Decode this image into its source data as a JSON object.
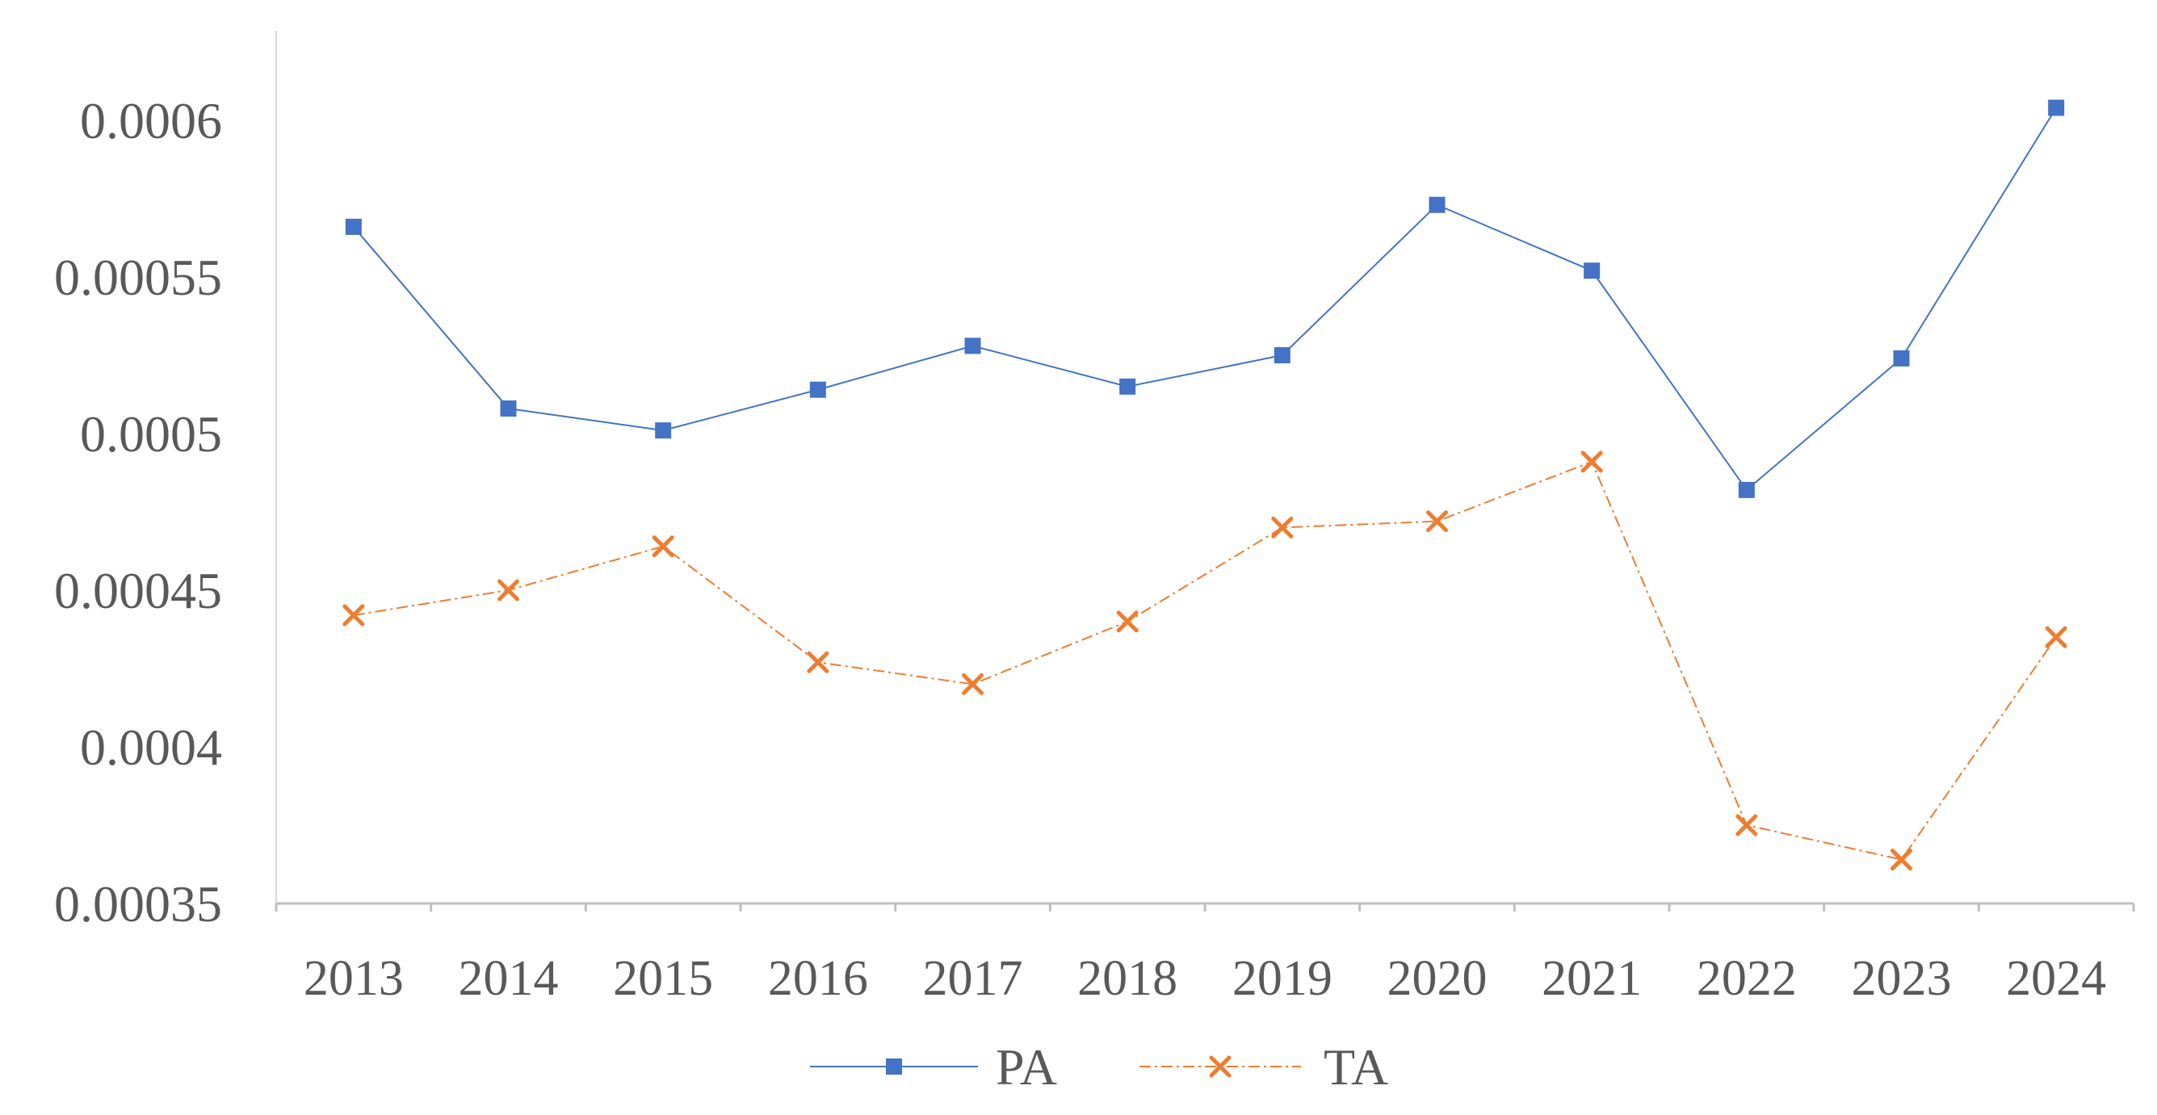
{
  "chart_data": {
    "type": "line",
    "title": "",
    "xlabel": "",
    "ylabel": "",
    "categories": [
      "2013",
      "2014",
      "2015",
      "2016",
      "2017",
      "2018",
      "2019",
      "2020",
      "2021",
      "2022",
      "2023",
      "2024"
    ],
    "ylim": [
      0.00035,
      0.00063
    ],
    "y_ticks": [
      0.00035,
      0.0004,
      0.00045,
      0.0005,
      0.00055,
      0.0006
    ],
    "y_tick_labels": [
      "0.00035",
      "0.0004",
      "0.00045",
      "0.0005",
      "0.00055",
      "0.0006"
    ],
    "grid": false,
    "legend_position": "bottom",
    "series": [
      {
        "name": "PA",
        "color": "#4472C4",
        "marker": "square",
        "line_style": "solid",
        "values": [
          0.000566,
          0.000508,
          0.000501,
          0.000514,
          0.000528,
          0.000515,
          0.000525,
          0.000573,
          0.000552,
          0.000482,
          0.000524,
          0.000604
        ]
      },
      {
        "name": "TA",
        "color": "#ED7D31",
        "marker": "x",
        "line_style": "dash-dot",
        "values": [
          0.000442,
          0.00045,
          0.000464,
          0.000427,
          0.00042,
          0.00044,
          0.00047,
          0.000472,
          0.000491,
          0.000375,
          0.000364,
          0.000435
        ]
      }
    ]
  }
}
